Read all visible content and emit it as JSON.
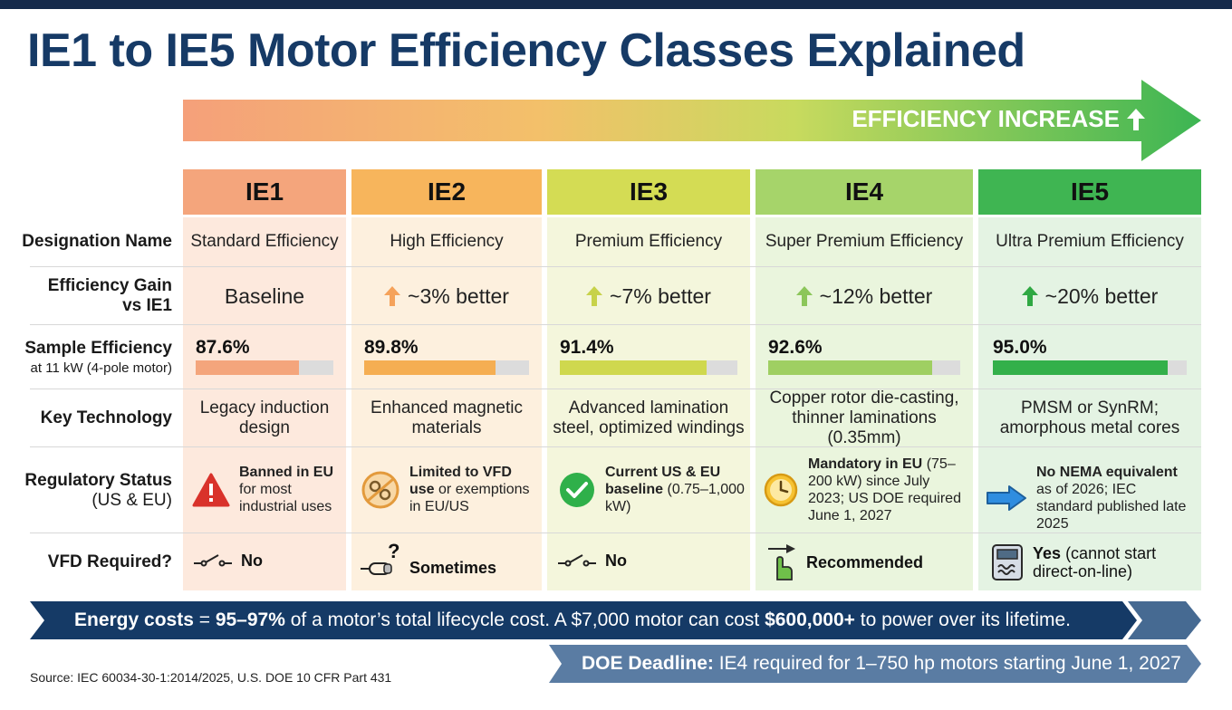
{
  "title": "IE1 to IE5 Motor Efficiency Classes Explained",
  "efficiency_label": "EFFICIENCY INCREASE",
  "row_labels": {
    "designation": "Designation Name",
    "gain_line1": "Efficiency Gain",
    "gain_line2": "vs IE1",
    "sample": "Sample Efficiency",
    "sample_sub": "at 11 kW (4-pole motor)",
    "technology": "Key Technology",
    "regulatory": "Regulatory Status",
    "regulatory_sub": "(US & EU)",
    "vfd": "VFD Required?"
  },
  "classes": [
    {
      "name": "IE1",
      "color": "#f4a57c",
      "bg": "#fde9dd",
      "bar": "#f4a57c",
      "designation": "Standard Efficiency",
      "gain": "Baseline",
      "gain_arrow": false,
      "sample_label": "87.6%",
      "sample_value": 87.6,
      "tech_line1": "Legacy induction",
      "tech_line2": "design",
      "status_icon": "warning-icon",
      "status_bold": "Banned in EU",
      "status_rest": "for most industrial uses",
      "vfd_icon": "switch-icon",
      "vfd_bold": "No",
      "vfd_rest": ""
    },
    {
      "name": "IE2",
      "color": "#f7b55c",
      "bg": "#fdf0de",
      "bar": "#f5ae52",
      "designation": "High Efficiency",
      "gain": "~3% better",
      "gain_arrow": true,
      "arrow_color": "#f5a25a",
      "sample_label": "89.8%",
      "sample_value": 89.8,
      "tech_line1": "Enhanced magnetic",
      "tech_line2": "materials",
      "status_icon": "restricted-gear-icon",
      "status_bold": "Limited to VFD use",
      "status_rest": "or exemptions in EU/US",
      "vfd_icon": "question-plug-icon",
      "vfd_bold": "Sometimes",
      "vfd_rest": ""
    },
    {
      "name": "IE3",
      "color": "#d4dc54",
      "bg": "#f4f6dc",
      "bar": "#cfd84e",
      "designation": "Premium Efficiency",
      "gain": "~7% better",
      "gain_arrow": true,
      "arrow_color": "#c7d24a",
      "sample_label": "91.4%",
      "sample_value": 91.4,
      "tech_line1": "Advanced lamination",
      "tech_line2": "steel, optimized windings",
      "status_icon": "check-circle-icon",
      "status_bold": "Current US & EU baseline",
      "status_rest": "(0.75–1,000 kW)",
      "vfd_icon": "switch-icon",
      "vfd_bold": "No",
      "vfd_rest": ""
    },
    {
      "name": "IE4",
      "color": "#a6d46a",
      "bg": "#eaf5dd",
      "bar": "#9fcf62",
      "designation": "Super Premium Efficiency",
      "gain": "~12% better",
      "gain_arrow": true,
      "arrow_color": "#8cc65a",
      "sample_label": "92.6%",
      "sample_value": 92.6,
      "tech_line1": "Copper rotor die-casting,",
      "tech_line2": "thinner laminations (0.35mm)",
      "status_icon": "clock-icon",
      "status_bold": "Mandatory in EU",
      "status_rest": "(75–200 kW) since July 2023; US DOE required June 1, 2027",
      "vfd_icon": "hand-pointer-icon",
      "vfd_bold": "Recommended",
      "vfd_rest": ""
    },
    {
      "name": "IE5",
      "color": "#3fb552",
      "bg": "#e4f3e3",
      "bar": "#33b04a",
      "designation": "Ultra Premium Efficiency",
      "gain": "~20% better",
      "gain_arrow": true,
      "arrow_color": "#2fa843",
      "sample_label": "95.0%",
      "sample_value": 95.0,
      "tech_line1": "PMSM or SynRM;",
      "tech_line2": "amorphous metal cores",
      "status_icon": "arrow-right-icon",
      "status_bold": "No NEMA equivalent",
      "status_rest": "as of 2026; IEC standard published late 2025",
      "vfd_icon": "drive-unit-icon",
      "vfd_bold": "Yes",
      "vfd_rest": "(cannot start direct-on-line)"
    }
  ],
  "banner1": {
    "p1": "Energy costs",
    "p2": " = ",
    "p3": "95–97%",
    "p4": " of a motor’s total lifecycle cost. A $7,000 motor can cost ",
    "p5": "$600,000+",
    "p6": " to power over its lifetime."
  },
  "banner2": {
    "bold": "DOE Deadline:",
    "rest": " IE4 required for 1–750 hp motors starting June 1, 2027"
  },
  "source": "Source: IEC 60034-30-1:2014/2025, U.S. DOE 10 CFR Part 431",
  "colors": {
    "navy": "#163a66",
    "banner_dark": "#153a66",
    "banner_mid": "#466a92",
    "warning_red": "#d9322b",
    "check_green": "#2fb04a",
    "arrow_blue": "#2f8de0"
  }
}
